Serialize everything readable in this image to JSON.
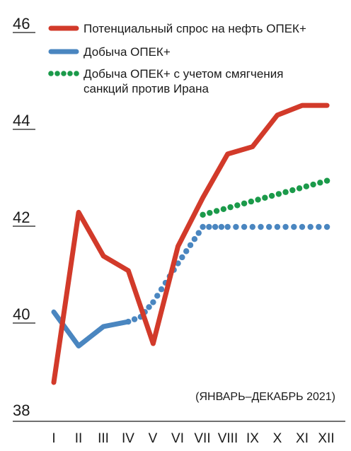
{
  "chart_data": {
    "type": "line",
    "categories": [
      "I",
      "II",
      "III",
      "IV",
      "V",
      "VI",
      "VII",
      "VIII",
      "IX",
      "X",
      "XI",
      "XII"
    ],
    "ylim": [
      38,
      46
    ],
    "yticks": [
      38,
      40,
      42,
      44,
      46
    ],
    "grid": false,
    "legend_position": "top-right",
    "annotation": "(ЯНВАРЬ–ДЕКАБРЬ 2021)",
    "series": [
      {
        "name": "Потенциальный спрос на нефть ОПЕК+",
        "style": "solid-thick",
        "color": "#d23a2a",
        "x": [
          "I",
          "II",
          "III",
          "IV",
          "V",
          "VI",
          "VII",
          "VIII",
          "IX",
          "X",
          "XI",
          "XII"
        ],
        "values": [
          38.8,
          42.3,
          41.4,
          41.1,
          39.6,
          41.6,
          42.6,
          43.5,
          43.65,
          44.3,
          44.5,
          44.5
        ]
      },
      {
        "name": "Добыча ОПЕК+",
        "style": "solid-with-dotted-segment",
        "color": "#4a86c0",
        "x": [
          "I",
          "II",
          "III",
          "IV",
          "IV.5",
          "V",
          "VI",
          "VII",
          "VII.5",
          "VIII",
          "IX",
          "X",
          "XI",
          "XII"
        ],
        "values": [
          40.25,
          39.55,
          39.95,
          40.05,
          40.15,
          40.45,
          41.25,
          42.0,
          42.0,
          42.0,
          42.0,
          42.0,
          42.0,
          42.0
        ],
        "solid_until_index": 4
      },
      {
        "name": "Добыча ОПЕК+ с учетом смягчения санкций против Ирана",
        "style": "dotted",
        "color": "#1b9a4a",
        "x": [
          "VII",
          "XII"
        ],
        "values": [
          42.25,
          42.95
        ]
      }
    ]
  }
}
